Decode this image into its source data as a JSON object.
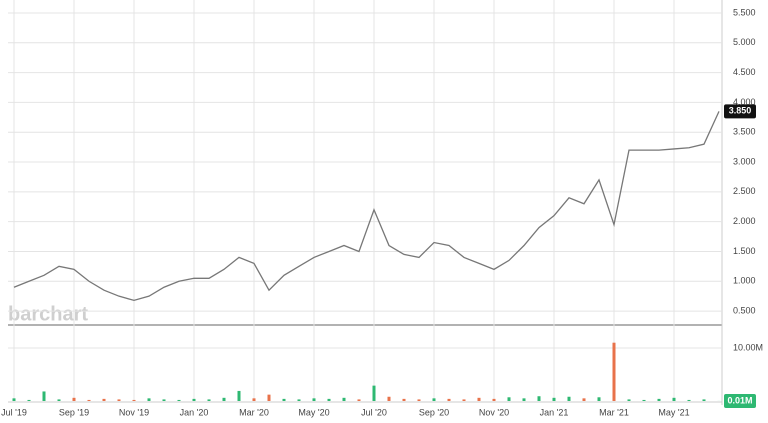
{
  "chart_data": [
    {
      "type": "line",
      "watermark": "barchart",
      "categories": [
        "Jul '19",
        null,
        null,
        null,
        "Sep '19",
        null,
        null,
        null,
        "Nov '19",
        null,
        null,
        null,
        "Jan '20",
        null,
        null,
        null,
        "Mar '20",
        null,
        null,
        null,
        "May '20",
        null,
        null,
        null,
        "Jul '20",
        null,
        null,
        null,
        "Sep '20",
        null,
        null,
        null,
        "Nov '20",
        null,
        null,
        null,
        "Jan '21",
        null,
        null,
        null,
        "Mar '21",
        null,
        null,
        null,
        "May '21",
        null,
        null,
        null
      ],
      "values": [
        0.9,
        1.0,
        1.1,
        1.25,
        1.2,
        1.0,
        0.85,
        0.75,
        0.68,
        0.75,
        0.9,
        1.0,
        1.05,
        1.05,
        1.2,
        1.4,
        1.3,
        0.85,
        1.1,
        1.25,
        1.4,
        1.5,
        1.6,
        1.5,
        2.2,
        1.6,
        1.45,
        1.4,
        1.65,
        1.6,
        1.4,
        1.3,
        1.2,
        1.35,
        1.6,
        1.9,
        2.1,
        2.4,
        2.3,
        2.7,
        1.95,
        3.2,
        3.2,
        3.2,
        3.22,
        3.24,
        3.3,
        3.85
      ],
      "last_value_label": "3.850",
      "color": "#777777",
      "ylim": [
        0.3,
        5.5
      ],
      "yticks": [
        {
          "value": 0.5,
          "label": "0.500"
        },
        {
          "value": 1.0,
          "label": "1.000"
        },
        {
          "value": 1.5,
          "label": "1.500"
        },
        {
          "value": 2.0,
          "label": "2.000"
        },
        {
          "value": 2.5,
          "label": "2.500"
        },
        {
          "value": 3.0,
          "label": "3.000"
        },
        {
          "value": 3.5,
          "label": "3.500"
        },
        {
          "value": 4.0,
          "label": "4.000"
        },
        {
          "value": 4.5,
          "label": "4.500"
        },
        {
          "value": 5.0,
          "label": "5.000"
        },
        {
          "value": 5.5,
          "label": "5.500"
        }
      ],
      "grid": true
    },
    {
      "type": "bar",
      "values": [
        0.5,
        0.2,
        1.8,
        0.3,
        0.6,
        0.2,
        0.4,
        0.3,
        0.2,
        0.5,
        0.3,
        0.2,
        0.4,
        0.3,
        0.6,
        1.9,
        0.5,
        1.2,
        0.4,
        0.3,
        0.5,
        0.4,
        0.6,
        0.3,
        2.9,
        0.8,
        0.4,
        0.3,
        0.5,
        0.4,
        0.3,
        0.6,
        0.4,
        0.7,
        0.5,
        0.9,
        0.6,
        0.8,
        0.5,
        0.7,
        11.0,
        0.3,
        0.2,
        0.4,
        0.6,
        0.2,
        0.3,
        0.01
      ],
      "last_value_label": "0.01M",
      "color": "#2eb872",
      "down_color": "#e8724a",
      "ylim": [
        0,
        12
      ],
      "yticks": [
        {
          "value": 10,
          "label": "10.00M"
        }
      ]
    }
  ]
}
